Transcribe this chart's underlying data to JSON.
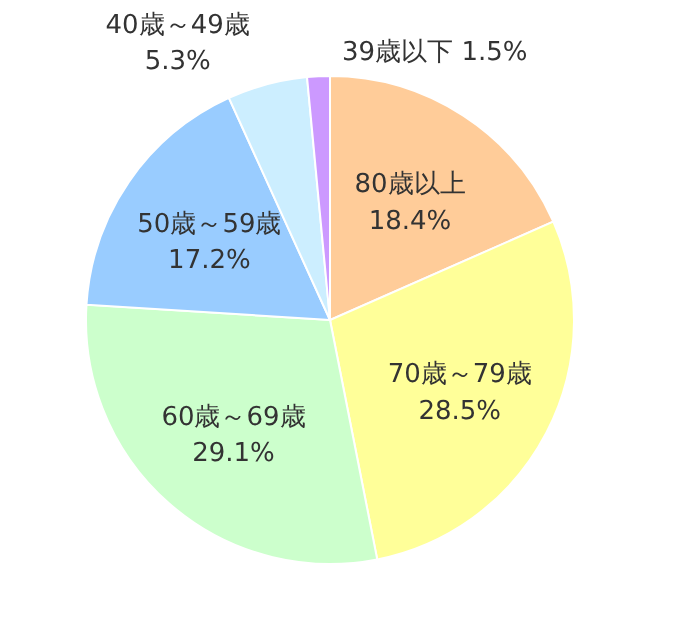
{
  "chart_data": {
    "type": "pie",
    "categories": [
      "80歳以上",
      "70歳～79歳",
      "60歳～69歳",
      "50歳～59歳",
      "40歳～49歳",
      "39歳以下"
    ],
    "values": [
      18.4,
      28.5,
      29.1,
      17.2,
      5.3,
      1.5
    ],
    "value_labels": [
      "18.4%",
      "28.5%",
      "29.1%",
      "17.2%",
      "5.3%",
      "1.5%"
    ],
    "colors": [
      "#ffcc99",
      "#ffff99",
      "#ccffcc",
      "#99ccff",
      "#cceeff",
      "#cc99ff"
    ]
  }
}
